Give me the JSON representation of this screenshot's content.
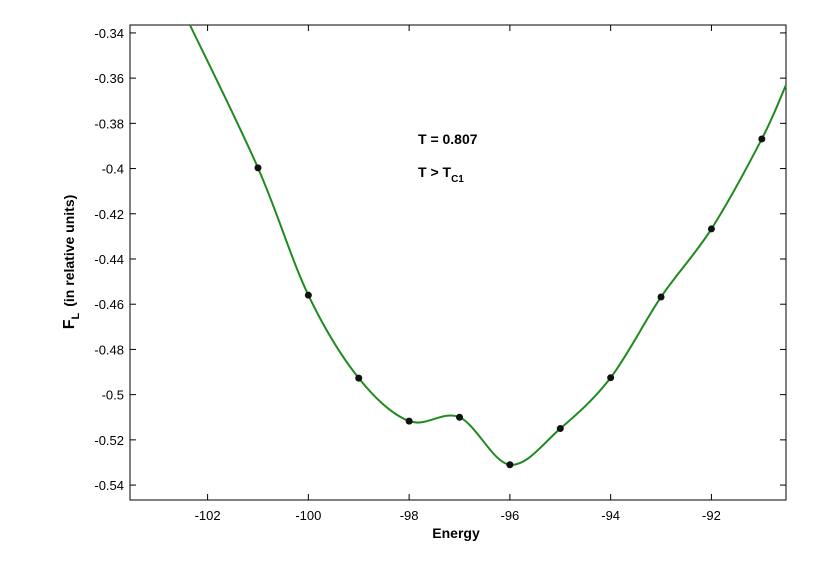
{
  "chart_data": {
    "type": "line",
    "xlabel": "Energy",
    "ylabel": {
      "main": "F",
      "sub": "L",
      "rest": "(in relative units)"
    },
    "annotations": [
      {
        "text": "T = 0.807"
      },
      {
        "text": "T > T",
        "sub": "C1"
      }
    ],
    "xlim": [
      -103.54,
      -90.52
    ],
    "ylim": [
      -0.5466,
      -0.3365
    ],
    "xticks": [
      -102,
      -100,
      -98,
      -96,
      -94,
      -92
    ],
    "yticks": [
      -0.54,
      -0.52,
      -0.5,
      -0.48,
      -0.46,
      -0.44,
      -0.42,
      -0.4,
      -0.38,
      -0.36,
      -0.34
    ],
    "series": [
      {
        "kind": "curve",
        "color": "#1f8a1f",
        "x": [
          -102.35,
          -101,
          -100,
          -99,
          -98,
          -97,
          -96,
          -95,
          -94,
          -93,
          -92,
          -91,
          -90.52
        ],
        "values": [
          -0.3365,
          -0.3997,
          -0.456,
          -0.4927,
          -0.5117,
          -0.51,
          -0.531,
          -0.515,
          -0.4925,
          -0.4568,
          -0.4267,
          -0.3869,
          -0.363
        ]
      },
      {
        "kind": "points",
        "color": "#111111",
        "x": [
          -101,
          -100,
          -99,
          -98,
          -97,
          -96,
          -95,
          -94,
          -93,
          -92,
          -91
        ],
        "values": [
          -0.3997,
          -0.456,
          -0.4927,
          -0.5117,
          -0.51,
          -0.531,
          -0.515,
          -0.4925,
          -0.4568,
          -0.4267,
          -0.3869
        ]
      }
    ]
  }
}
